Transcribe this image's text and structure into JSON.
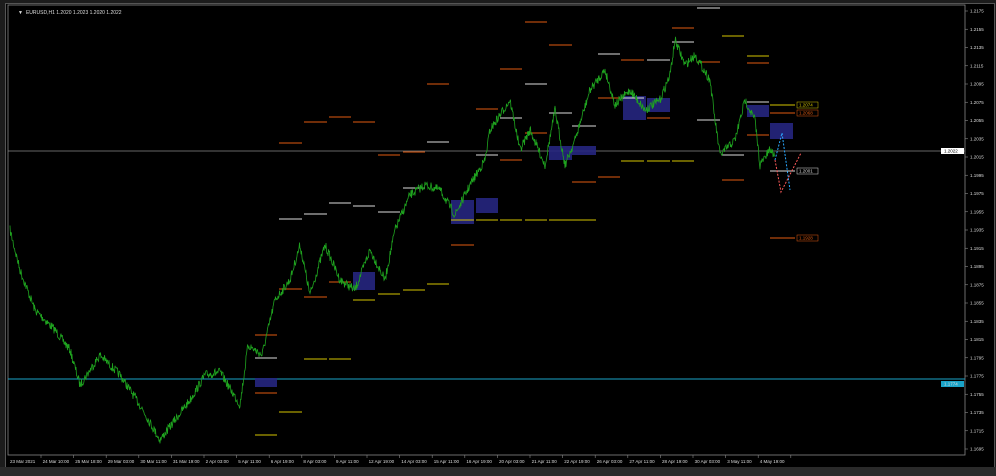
{
  "title": {
    "symbol": "EURUSD,H1",
    "quote": "1.2020 1.2023 1.2020 1.2022"
  },
  "price_axis": [
    "1.2175",
    "1.2155",
    "1.2135",
    "1.2115",
    "1.2095",
    "1.2075",
    "1.2055",
    "1.2035",
    "1.2015",
    "1.1995",
    "1.1975",
    "1.1955",
    "1.1935",
    "1.1915",
    "1.1895",
    "1.1875",
    "1.1855",
    "1.1835",
    "1.1815",
    "1.1795",
    "1.1775",
    "1.1755",
    "1.1735",
    "1.1715",
    "1.1695"
  ],
  "current_price_label": "1.2022",
  "cyan_line_label": "1.1774",
  "level_labels": [
    {
      "text": "1.2074",
      "color": "#d4c400"
    },
    {
      "text": "1.2068",
      "color": "#e05a10"
    },
    {
      "text": "1.2001",
      "color": "#dddddd"
    },
    {
      "text": "1.1928",
      "color": "#e05a10"
    }
  ],
  "time_axis": [
    "23 Mar 2021",
    "24 Mar 10:00",
    "25 Mar 18:00",
    "29 Mar 03:00",
    "30 Mar 11:00",
    "31 Mar 19:00",
    "2 Apr 03:00",
    "5 Apr 11:00",
    "6 Apr 19:00",
    "8 Apr 03:00",
    "9 Apr 11:00",
    "12 Apr 19:00",
    "14 Apr 03:00",
    "15 Apr 11:00",
    "16 Apr 19:00",
    "20 Apr 03:00",
    "21 Apr 11:00",
    "22 Apr 19:00",
    "26 Apr 03:00",
    "27 Apr 11:00",
    "28 Apr 19:00",
    "30 Apr 03:00",
    "3 May 11:00",
    "4 May 19:00"
  ],
  "colors": {
    "price_line": "#1fa31f",
    "cyan_line": "#1aa3c8",
    "bid_line": "#888888",
    "zone": "#262680",
    "up_arrow": "#2aa8ff",
    "down_arrow": "#ff5a5a"
  }
}
